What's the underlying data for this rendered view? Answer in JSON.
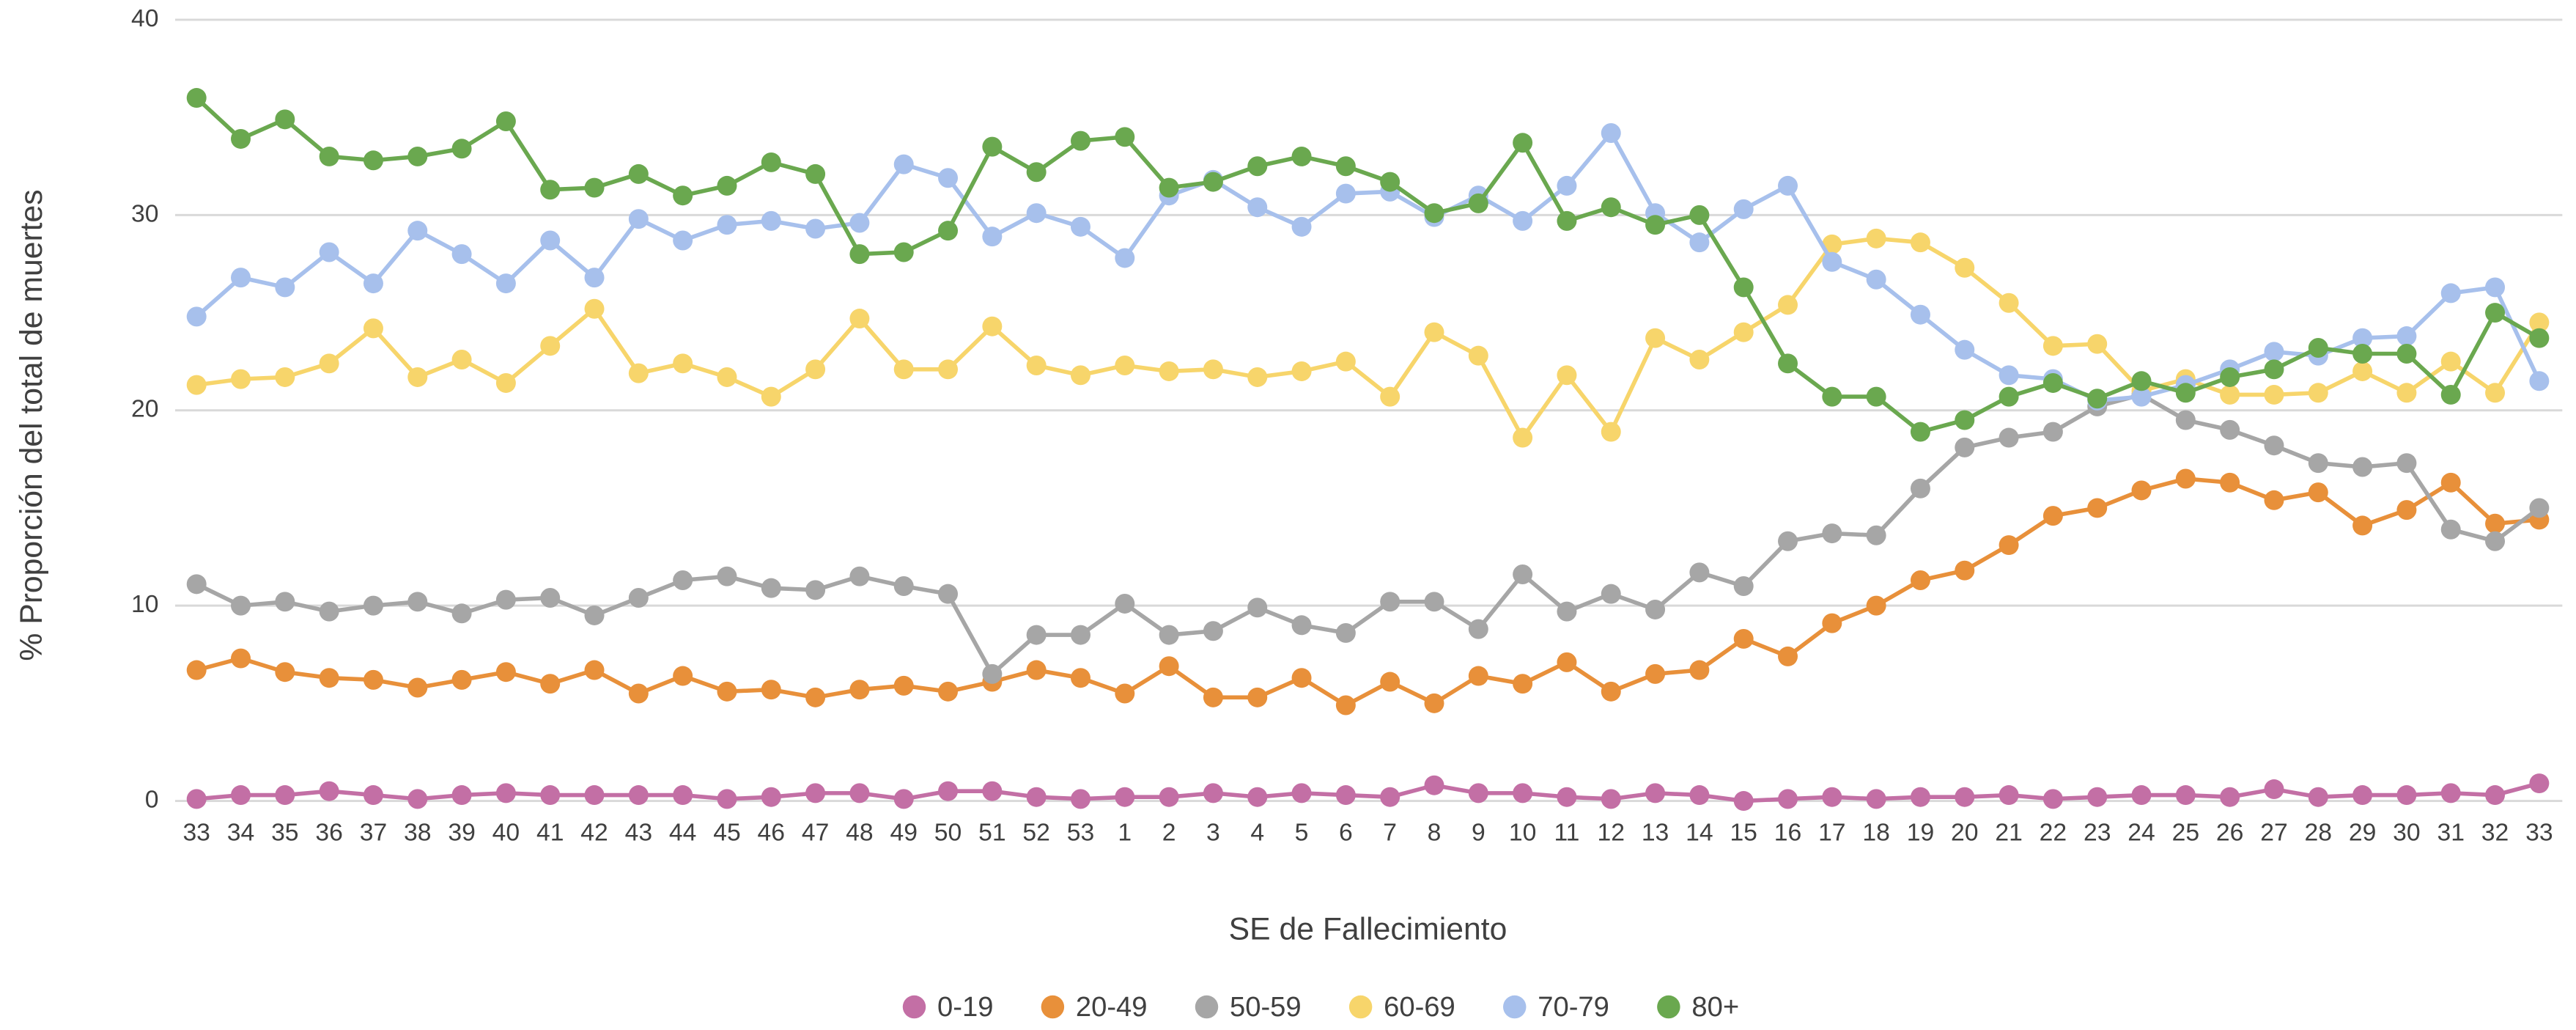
{
  "chart_data": {
    "type": "line",
    "y_label": "% Proporción del total de muertes",
    "x_label": "SE de Fallecimiento",
    "categories": [
      "33",
      "34",
      "35",
      "36",
      "37",
      "38",
      "39",
      "40",
      "41",
      "42",
      "43",
      "44",
      "45",
      "46",
      "47",
      "48",
      "49",
      "50",
      "51",
      "52",
      "53",
      "1",
      "2",
      "3",
      "4",
      "5",
      "6",
      "7",
      "8",
      "9",
      "10",
      "11",
      "12",
      "13",
      "14",
      "15",
      "16",
      "17",
      "18",
      "19",
      "20",
      "21",
      "22",
      "23",
      "24",
      "25",
      "26",
      "27",
      "28",
      "29",
      "30",
      "31",
      "32",
      "33"
    ],
    "ylim": [
      0,
      40
    ],
    "yticks": [
      0,
      10,
      20,
      30,
      40
    ],
    "grid": true,
    "legend": "bottom",
    "series": [
      {
        "name": "0-19",
        "color": "#c36fa5",
        "values": [
          0.1,
          0.3,
          0.3,
          0.5,
          0.3,
          0.1,
          0.3,
          0.4,
          0.3,
          0.3,
          0.3,
          0.3,
          0.1,
          0.2,
          0.4,
          0.4,
          0.1,
          0.5,
          0.5,
          0.2,
          0.1,
          0.2,
          0.2,
          0.4,
          0.2,
          0.4,
          0.3,
          0.2,
          0.8,
          0.4,
          0.4,
          0.2,
          0.1,
          0.4,
          0.3,
          0.0,
          0.1,
          0.2,
          0.1,
          0.2,
          0.2,
          0.3,
          0.1,
          0.2,
          0.3,
          0.3,
          0.2,
          0.6,
          0.2,
          0.3,
          0.3,
          0.4,
          0.3,
          0.9
        ]
      },
      {
        "name": "20-49",
        "color": "#e8903a",
        "values": [
          6.7,
          7.3,
          6.6,
          6.3,
          6.2,
          5.8,
          6.2,
          6.6,
          6.0,
          6.7,
          5.5,
          6.4,
          5.6,
          5.7,
          5.3,
          5.7,
          5.9,
          5.6,
          6.1,
          6.7,
          6.3,
          5.5,
          6.9,
          5.3,
          5.3,
          6.3,
          4.9,
          6.1,
          5.0,
          6.4,
          6.0,
          7.1,
          5.6,
          6.5,
          6.7,
          8.3,
          7.4,
          9.1,
          10.0,
          11.3,
          11.8,
          13.1,
          14.6,
          15.0,
          15.9,
          16.5,
          16.3,
          15.4,
          15.8,
          14.1,
          14.9,
          16.3,
          14.2,
          14.4
        ]
      },
      {
        "name": "50-59",
        "color": "#a6a6a6",
        "values": [
          11.1,
          10.0,
          10.2,
          9.7,
          10.0,
          10.2,
          9.6,
          10.3,
          10.4,
          9.5,
          10.4,
          11.3,
          11.5,
          10.9,
          10.8,
          11.5,
          11.0,
          10.6,
          6.5,
          8.5,
          8.5,
          10.1,
          8.5,
          8.7,
          9.9,
          9.0,
          8.6,
          10.2,
          10.2,
          8.8,
          11.6,
          9.7,
          10.6,
          9.8,
          11.7,
          11.0,
          13.3,
          13.7,
          13.6,
          16.0,
          18.1,
          18.6,
          18.9,
          20.2,
          20.8,
          19.5,
          19.0,
          18.2,
          17.3,
          17.1,
          17.3,
          13.9,
          13.3,
          15.0
        ]
      },
      {
        "name": "60-69",
        "color": "#f7d56b",
        "values": [
          21.3,
          21.6,
          21.7,
          22.4,
          24.2,
          21.7,
          22.6,
          21.4,
          23.3,
          25.2,
          21.9,
          22.4,
          21.7,
          20.7,
          22.1,
          24.7,
          22.1,
          22.1,
          24.3,
          22.3,
          21.8,
          22.3,
          22.0,
          22.1,
          21.7,
          22.0,
          22.5,
          20.7,
          24.0,
          22.8,
          18.6,
          21.8,
          18.9,
          23.7,
          22.6,
          24.0,
          25.4,
          28.5,
          28.8,
          28.6,
          27.3,
          25.5,
          23.3,
          23.4,
          21.0,
          21.6,
          20.8,
          20.8,
          20.9,
          22.0,
          20.9,
          22.5,
          20.9,
          24.5
        ]
      },
      {
        "name": "70-79",
        "color": "#a7c0ec",
        "values": [
          24.8,
          26.8,
          26.3,
          28.1,
          26.5,
          29.2,
          28.0,
          26.5,
          28.7,
          26.8,
          29.8,
          28.7,
          29.5,
          29.7,
          29.3,
          29.6,
          32.6,
          31.9,
          28.9,
          30.1,
          29.4,
          27.8,
          31.0,
          31.8,
          30.4,
          29.4,
          31.1,
          31.2,
          29.9,
          31.0,
          29.7,
          31.5,
          34.2,
          30.1,
          28.6,
          30.3,
          31.5,
          27.6,
          26.7,
          24.9,
          23.1,
          21.8,
          21.6,
          20.5,
          20.7,
          21.3,
          22.1,
          23.0,
          22.8,
          23.7,
          23.8,
          26.0,
          26.3,
          21.5
        ]
      },
      {
        "name": "80+",
        "color": "#6aa84f",
        "values": [
          36.0,
          33.9,
          34.9,
          33.0,
          32.8,
          33.0,
          33.4,
          34.8,
          31.3,
          31.4,
          32.1,
          31.0,
          31.5,
          32.7,
          32.1,
          28.0,
          28.1,
          29.2,
          33.5,
          32.2,
          33.8,
          34.0,
          31.4,
          31.7,
          32.5,
          33.0,
          32.5,
          31.7,
          30.1,
          30.6,
          33.7,
          29.7,
          30.4,
          29.5,
          30.0,
          26.3,
          22.4,
          20.7,
          20.7,
          18.9,
          19.5,
          20.7,
          21.4,
          20.6,
          21.5,
          20.9,
          21.7,
          22.1,
          23.2,
          22.9,
          22.9,
          20.8,
          25.0,
          23.7
        ]
      }
    ]
  }
}
